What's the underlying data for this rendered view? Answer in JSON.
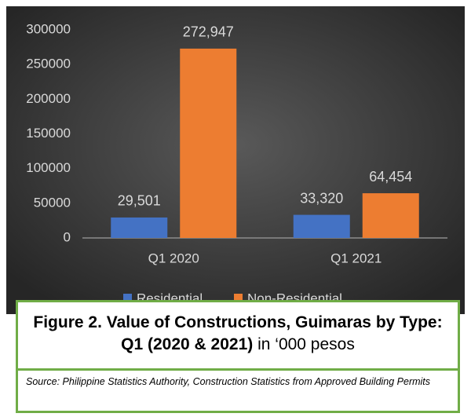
{
  "chart_data": {
    "type": "bar",
    "categories": [
      "Q1 2020",
      "Q1 2021"
    ],
    "series": [
      {
        "name": "Residential",
        "color": "#4472c4",
        "values": [
          29501,
          33320
        ],
        "value_labels": [
          "29,501",
          "33,320"
        ]
      },
      {
        "name": "Non-Residential",
        "color": "#ed7d31",
        "values": [
          272947,
          64454
        ],
        "value_labels": [
          "272,947",
          "64,454"
        ]
      }
    ],
    "ylim": [
      0,
      300000
    ],
    "yticks": [
      0,
      50000,
      100000,
      150000,
      200000,
      250000,
      300000
    ],
    "legend": "bottom"
  },
  "caption": {
    "title": "Figure 2. Value of Constructions, Guimaras by Type: Q1 (2020 & 2021)",
    "unit": "in ‘000 pesos"
  },
  "source": "Source: Philippine Statistics Authority, Construction Statistics from Approved Building Permits"
}
